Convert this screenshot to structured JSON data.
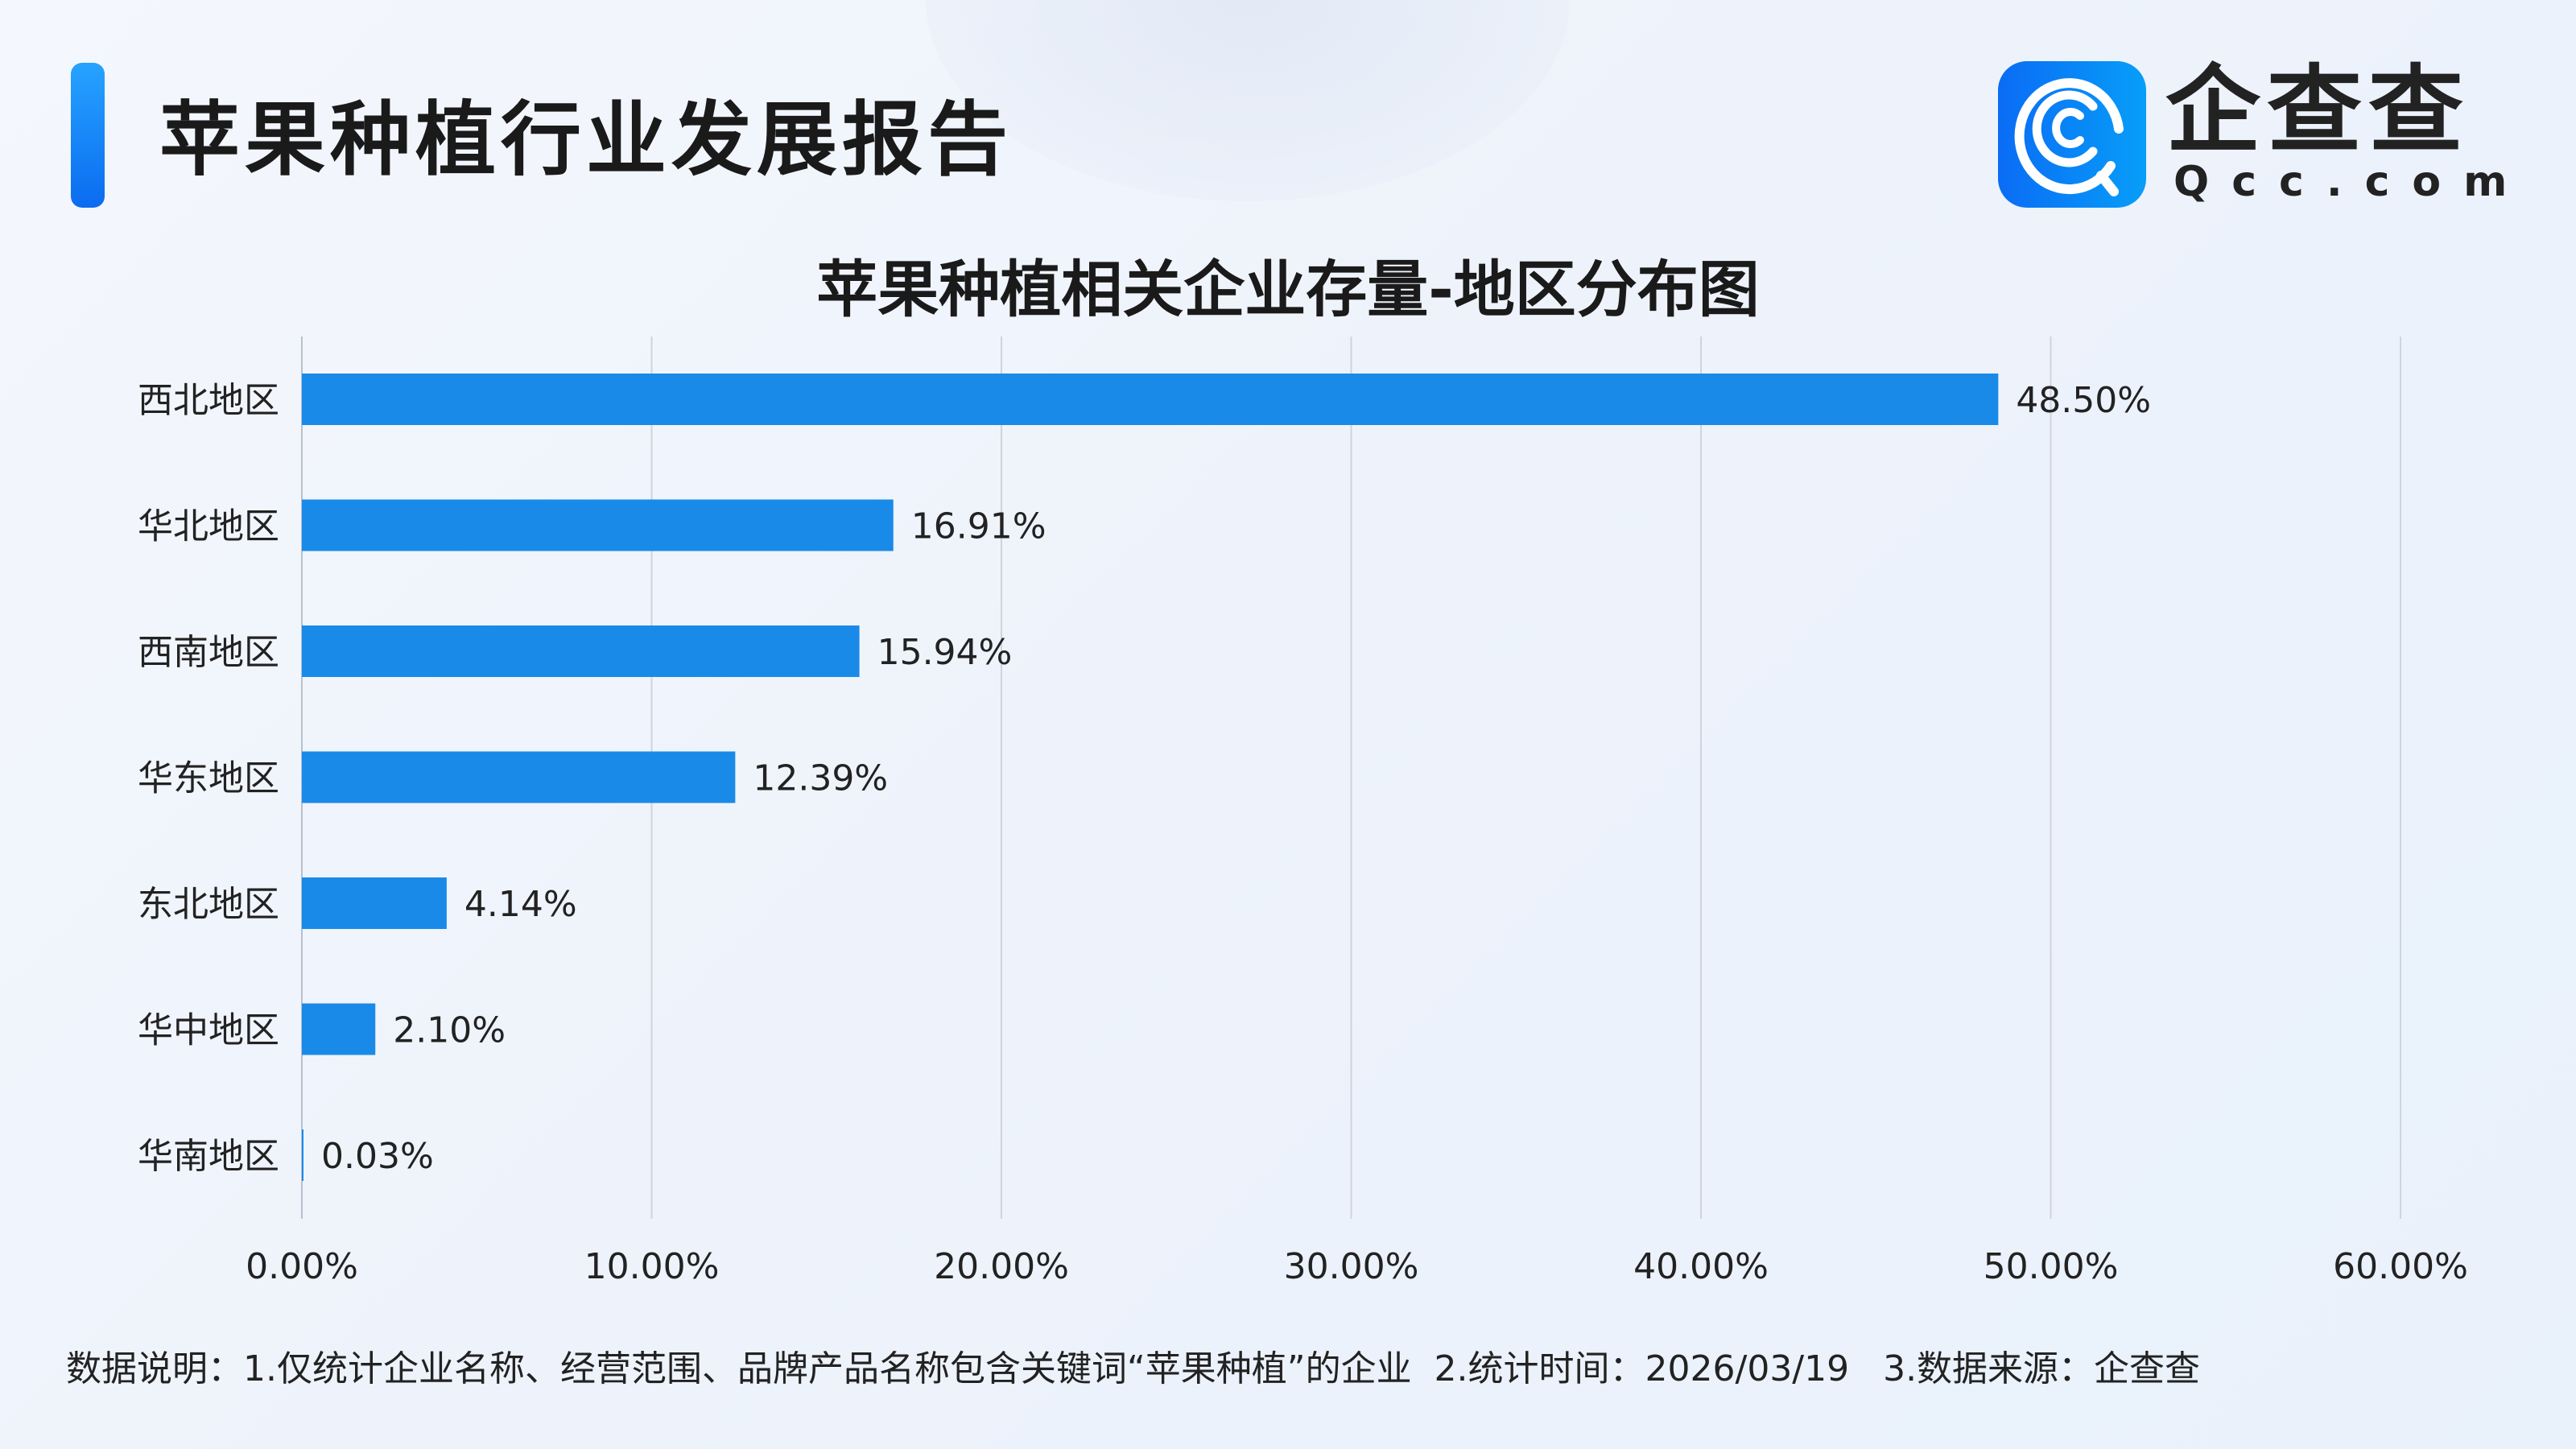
{
  "header": {
    "title": "苹果种植行业发展报告",
    "logo_text": "企查查",
    "logo_sub": "Qcc.com"
  },
  "colors": {
    "bar": "#1a8ae8",
    "accent": "#0a6cf0",
    "grid": "#cfd4dc"
  },
  "chart_data": {
    "type": "bar",
    "orientation": "horizontal",
    "title": "苹果种植相关企业存量-地区分布图",
    "categories": [
      "西北地区",
      "华北地区",
      "西南地区",
      "华东地区",
      "东北地区",
      "华中地区",
      "华南地区"
    ],
    "values": [
      48.5,
      16.91,
      15.94,
      12.39,
      4.14,
      2.1,
      0.03
    ],
    "data_labels": [
      "48.50%",
      "16.91%",
      "15.94%",
      "12.39%",
      "4.14%",
      "2.10%",
      "0.03%"
    ],
    "xlim": [
      0,
      60
    ],
    "x_ticks": [
      "0.00%",
      "10.00%",
      "20.00%",
      "30.00%",
      "40.00%",
      "50.00%",
      "60.00%"
    ],
    "grid": "vertical",
    "xlabel": "",
    "ylabel": ""
  },
  "footer": {
    "note": "数据说明：1.仅统计企业名称、经营范围、品牌产品名称包含关键词“苹果种植”的企业  2.统计时间：2026/03/19   3.数据来源：企查查"
  }
}
